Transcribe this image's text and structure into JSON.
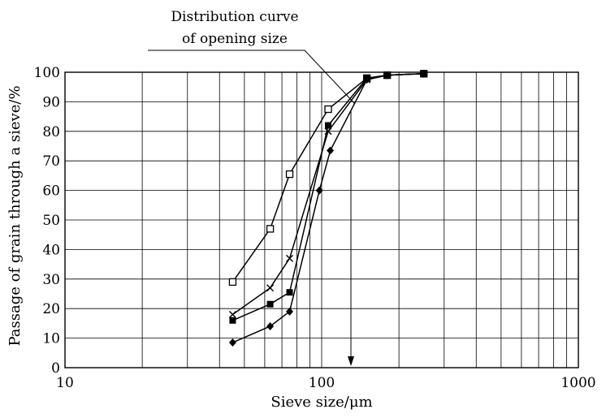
{
  "chart_data": {
    "type": "line",
    "title": "",
    "xlabel": "Sieve size/μm",
    "ylabel": "Passage of grain through a sieve/%",
    "xscale": "log",
    "xlim": [
      10,
      1000
    ],
    "ylim": [
      0,
      100
    ],
    "grid": true,
    "x_ticks": [
      "10",
      "100",
      "1000"
    ],
    "y_ticks": [
      "0",
      "10",
      "20",
      "30",
      "40",
      "50",
      "60",
      "70",
      "80",
      "90",
      "100"
    ],
    "annotation": {
      "text_lines": [
        "Distribution curve",
        "of opening size"
      ],
      "marker_x": 130
    },
    "series": [
      {
        "marker": "open-square",
        "points": [
          [
            45,
            29
          ],
          [
            63,
            47
          ],
          [
            75,
            65.5
          ],
          [
            106,
            87.5
          ],
          [
            150,
            98
          ],
          [
            180,
            99
          ],
          [
            250,
            99.5
          ]
        ]
      },
      {
        "marker": "cross",
        "points": [
          [
            45,
            18
          ],
          [
            63,
            27
          ],
          [
            75,
            37
          ],
          [
            106,
            80
          ],
          [
            150,
            97.5
          ],
          [
            180,
            99
          ],
          [
            250,
            99.5
          ]
        ]
      },
      {
        "marker": "filled-square",
        "points": [
          [
            45,
            16
          ],
          [
            63,
            21.5
          ],
          [
            75,
            25.5
          ],
          [
            106,
            82
          ],
          [
            150,
            98
          ],
          [
            180,
            99
          ],
          [
            250,
            99.5
          ]
        ]
      },
      {
        "marker": "filled-diamond",
        "points": [
          [
            45,
            8.5
          ],
          [
            63,
            14
          ],
          [
            75,
            19
          ],
          [
            98,
            60
          ],
          [
            108,
            73.5
          ],
          [
            150,
            97.5
          ],
          [
            180,
            99
          ],
          [
            250,
            99.5
          ]
        ]
      }
    ]
  }
}
